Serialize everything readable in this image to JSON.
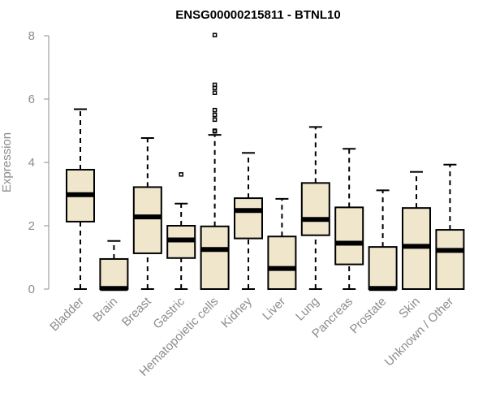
{
  "chart_data": {
    "type": "box",
    "title": "ENSG00000215811 - BTNL10",
    "ylabel": "Expression",
    "xlabel": "",
    "ylim": [
      0,
      8
    ],
    "yticks": [
      0,
      2,
      4,
      6,
      8
    ],
    "box_color": "#efe6cc",
    "categories": [
      "Bladder",
      "Brain",
      "Breast",
      "Gastric",
      "Hematopoietic cells",
      "Kidney",
      "Liver",
      "Lung",
      "Pancreas",
      "Prostate",
      "Skin",
      "Unknown / Other"
    ],
    "series": [
      {
        "category": "Bladder",
        "min": 0,
        "q1": 2.13,
        "median": 2.98,
        "q3": 3.77,
        "max": 5.68,
        "outliers": []
      },
      {
        "category": "Brain",
        "min": 0,
        "q1": 0,
        "median": 0.02,
        "q3": 0.95,
        "max": 1.52,
        "outliers": []
      },
      {
        "category": "Breast",
        "min": 0,
        "q1": 1.13,
        "median": 2.28,
        "q3": 3.22,
        "max": 4.77,
        "outliers": []
      },
      {
        "category": "Gastric",
        "min": 0,
        "q1": 0.98,
        "median": 1.55,
        "q3": 2.0,
        "max": 2.7,
        "outliers": [
          3.62
        ]
      },
      {
        "category": "Hematopoietic cells",
        "min": 0,
        "q1": 0,
        "median": 1.25,
        "q3": 1.98,
        "max": 4.87,
        "outliers": [
          8.02,
          6.45,
          6.35,
          6.2,
          5.65,
          5.5,
          5.35,
          5.0,
          4.98
        ]
      },
      {
        "category": "Kidney",
        "min": 0,
        "q1": 1.6,
        "median": 2.48,
        "q3": 2.87,
        "max": 4.3,
        "outliers": []
      },
      {
        "category": "Liver",
        "min": 0,
        "q1": 0,
        "median": 0.65,
        "q3": 1.66,
        "max": 2.85,
        "outliers": []
      },
      {
        "category": "Lung",
        "min": 0,
        "q1": 1.7,
        "median": 2.2,
        "q3": 3.35,
        "max": 5.12,
        "outliers": []
      },
      {
        "category": "Pancreas",
        "min": 0,
        "q1": 0.78,
        "median": 1.45,
        "q3": 2.58,
        "max": 4.43,
        "outliers": []
      },
      {
        "category": "Prostate",
        "min": 0,
        "q1": 0,
        "median": 0.02,
        "q3": 1.33,
        "max": 3.12,
        "outliers": []
      },
      {
        "category": "Skin",
        "min": 0,
        "q1": 0,
        "median": 1.35,
        "q3": 2.56,
        "max": 3.7,
        "outliers": []
      },
      {
        "category": "Unknown / Other",
        "min": 0,
        "q1": 0,
        "median": 1.22,
        "q3": 1.87,
        "max": 3.93,
        "outliers": []
      }
    ]
  }
}
